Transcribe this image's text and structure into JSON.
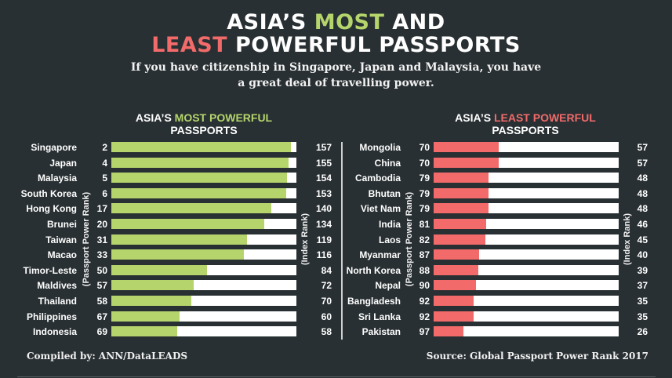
{
  "header": {
    "line1_prefix": "ASIA’S ",
    "line1_highlight": "MOST",
    "line1_suffix": " AND",
    "line2_highlight": "LEAST",
    "line2_suffix": " POWERFUL PASSPORTS",
    "subtitle_line1": "If you have citizenship in Singapore, Japan and Malaysia, you have",
    "subtitle_line2": "a great deal of travelling power."
  },
  "colors": {
    "background": "#293033",
    "most_accent": "#b5d56c",
    "least_accent": "#f26a6a",
    "bar_track": "#ffffff"
  },
  "left_panel": {
    "title_prefix": "ASIA’S ",
    "title_highlight": "MOST POWERFUL",
    "title_line2": "PASSPORTS",
    "rank_axis_label": "(Passport Power Rank)",
    "index_axis_label": "(Index Rank)"
  },
  "right_panel": {
    "title_prefix": "ASIA’S ",
    "title_highlight": "LEAST POWERFUL",
    "title_line2": "PASSPORTS",
    "rank_axis_label": "(Passport Power Rank)",
    "index_axis_label": "(Index Rank)"
  },
  "footer": {
    "compiled": "Compiled by: ANN/DataLEADS",
    "source": "Source: Global Passport Power Rank 2017"
  },
  "chart_data": [
    {
      "type": "bar",
      "orientation": "horizontal",
      "title": "ASIA’S MOST POWERFUL PASSPORTS",
      "xlabel": "(Index Rank)",
      "ylabel": "(Passport Power Rank)",
      "xlim": [
        0,
        162
      ],
      "grid": false,
      "legend": null,
      "categories": [
        "Singapore",
        "Japan",
        "Malaysia",
        "South Korea",
        "Hong Kong",
        "Brunei",
        "Taiwan",
        "Macao",
        "Timor-Leste",
        "Maldives",
        "Thailand",
        "Philippines",
        "Indonesia"
      ],
      "passport_power_rank": [
        2,
        4,
        5,
        6,
        17,
        20,
        31,
        33,
        50,
        57,
        58,
        67,
        69
      ],
      "values": [
        157,
        155,
        154,
        153,
        140,
        134,
        119,
        116,
        84,
        72,
        70,
        60,
        58
      ],
      "bar_color": "#b5d56c"
    },
    {
      "type": "bar",
      "orientation": "horizontal",
      "title": "ASIA’S LEAST POWERFUL PASSPORTS",
      "xlabel": "(Index Rank)",
      "ylabel": "(Passport Power Rank)",
      "xlim": [
        0,
        162
      ],
      "grid": false,
      "legend": null,
      "categories": [
        "Mongolia",
        "China",
        "Cambodia",
        "Bhutan",
        "Viet Nam",
        "India",
        "Laos",
        "Myanmar",
        "North Korea",
        "Nepal",
        "Bangladesh",
        "Sri Lanka",
        "Pakistan"
      ],
      "passport_power_rank": [
        70,
        70,
        79,
        79,
        79,
        81,
        82,
        87,
        88,
        90,
        92,
        92,
        97
      ],
      "values": [
        57,
        57,
        48,
        48,
        48,
        46,
        45,
        40,
        39,
        37,
        35,
        35,
        26
      ],
      "bar_color": "#f26a6a"
    }
  ]
}
